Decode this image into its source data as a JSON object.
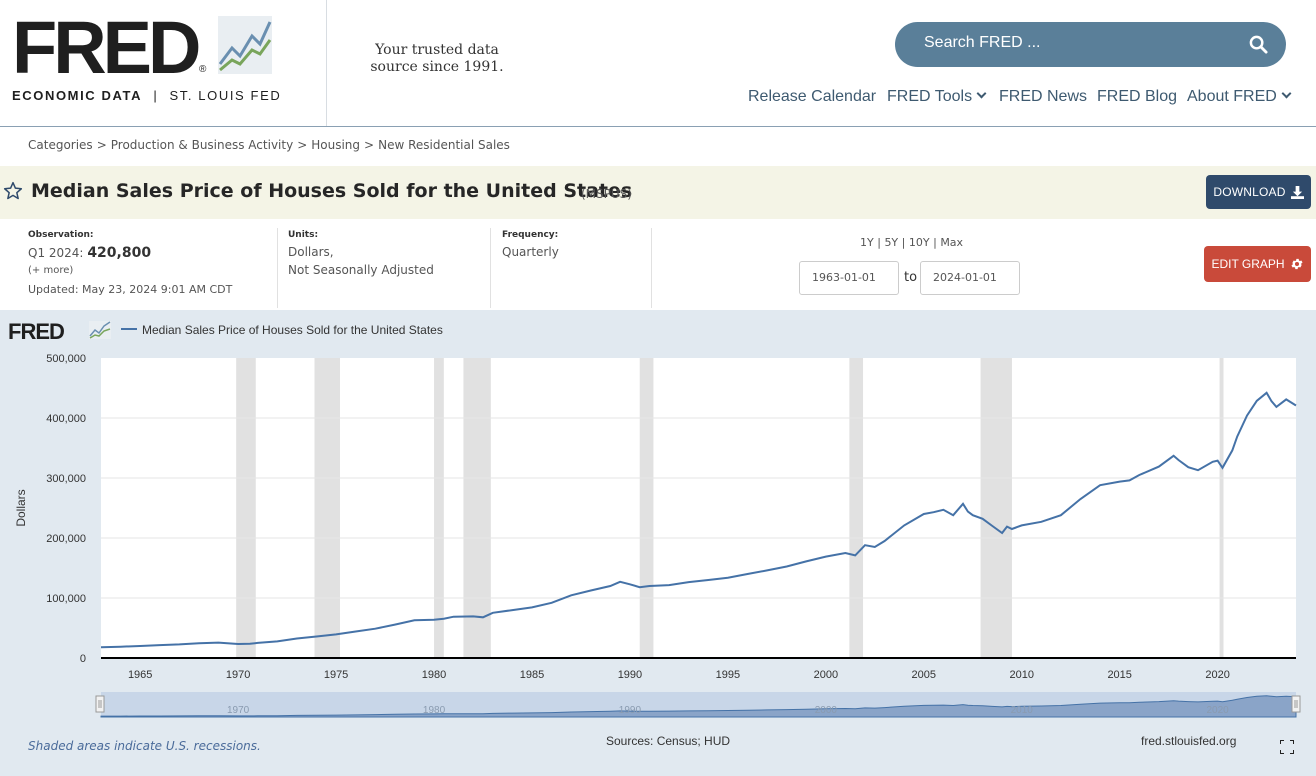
{
  "header": {
    "logo_text": "FRED",
    "logo_reg": "®",
    "logo_sub_left": "ECONOMIC DATA",
    "logo_sub_divider": "|",
    "logo_sub_right": "ST. LOUIS FED",
    "tagline": "Your trusted data source since 1991.",
    "search_placeholder": "Search FRED ...",
    "nav": [
      {
        "label": "Release Calendar",
        "dropdown": false
      },
      {
        "label": "FRED Tools",
        "dropdown": true
      },
      {
        "label": "FRED News",
        "dropdown": false
      },
      {
        "label": "FRED Blog",
        "dropdown": false
      },
      {
        "label": "About FRED",
        "dropdown": true
      }
    ]
  },
  "breadcrumb": [
    "Categories",
    "Production & Business Activity",
    "Housing",
    "New Residential Sales"
  ],
  "title": {
    "text": "Median Sales Price of Houses Sold for the United States",
    "series_id": "(MSPUS)",
    "download_label": "DOWNLOAD"
  },
  "meta": {
    "observation_label": "Observation:",
    "observation_period": "Q1 2024:",
    "observation_value": "420,800",
    "more": "(+ more)",
    "updated": "Updated: May 23, 2024 9:01 AM CDT",
    "units_label": "Units:",
    "units_line1": "Dollars,",
    "units_line2": "Not Seasonally Adjusted",
    "frequency_label": "Frequency:",
    "frequency_value": "Quarterly",
    "range_links": [
      "1Y",
      "5Y",
      "10Y",
      "Max"
    ],
    "range_sep": "|",
    "start_date": "1963-01-01",
    "to_label": "to",
    "end_date": "2024-01-01",
    "edit_label": "EDIT GRAPH"
  },
  "footer": {
    "recession_note": "Shaded areas indicate U.S. recessions.",
    "sources": "Sources: Census; HUD",
    "site": "fred.stlouisfed.org"
  },
  "colors": {
    "line": "#4572a7",
    "recession": "#e1e1e1",
    "search_bg": "#5a7f99",
    "download_bg": "#2f4a6b",
    "edit_bg": "#c94a3a",
    "title_bar_bg": "#f4f4e6",
    "graph_bg": "#e1e9f0",
    "nav_text": "#3e5a70"
  },
  "icons": [
    "search-icon",
    "star-icon",
    "download-icon",
    "gear-icon",
    "chevron-down-icon",
    "fullscreen-icon",
    "fred-chart-logo-icon"
  ],
  "chart_data": {
    "type": "line",
    "title": "",
    "legend_logo": "FRED",
    "legend": "Median Sales Price of Houses Sold for the United States",
    "ylabel": "Dollars",
    "xlabel": "",
    "xlim": [
      1963.0,
      2024.0
    ],
    "ylim": [
      0,
      500000
    ],
    "y_ticks": [
      0,
      100000,
      200000,
      300000,
      400000,
      500000
    ],
    "y_tick_labels": [
      "0",
      "100,000",
      "200,000",
      "300,000",
      "400,000",
      "500,000"
    ],
    "x_ticks": [
      1965,
      1970,
      1975,
      1980,
      1985,
      1990,
      1995,
      2000,
      2005,
      2010,
      2015,
      2020
    ],
    "navigator_ticks": [
      1970,
      1980,
      1990,
      2000,
      2010,
      2020
    ],
    "grid": true,
    "recessions": [
      [
        1969.9,
        1970.9
      ],
      [
        1973.9,
        1975.2
      ],
      [
        1980.0,
        1980.5
      ],
      [
        1981.5,
        1982.9
      ],
      [
        1990.5,
        1991.2
      ],
      [
        2001.2,
        2001.9
      ],
      [
        2007.9,
        2009.5
      ],
      [
        2020.1,
        2020.3
      ]
    ],
    "series": [
      {
        "name": "Median Sales Price of Houses Sold for the United States",
        "x": [
          1963.0,
          1964.0,
          1965.0,
          1966.0,
          1967.0,
          1968.0,
          1969.0,
          1970.0,
          1970.6,
          1971.0,
          1972.0,
          1973.0,
          1974.0,
          1975.0,
          1976.0,
          1977.0,
          1978.0,
          1979.0,
          1980.0,
          1980.5,
          1981.0,
          1982.0,
          1982.5,
          1983.0,
          1984.0,
          1985.0,
          1986.0,
          1987.0,
          1988.0,
          1989.0,
          1989.5,
          1990.0,
          1990.5,
          1991.0,
          1992.0,
          1993.0,
          1994.0,
          1995.0,
          1996.0,
          1997.0,
          1998.0,
          1999.0,
          2000.0,
          2001.0,
          2001.5,
          2002.0,
          2002.5,
          2003.0,
          2004.0,
          2005.0,
          2005.5,
          2006.0,
          2006.5,
          2007.0,
          2007.25,
          2007.5,
          2008.0,
          2008.5,
          2009.0,
          2009.25,
          2009.5,
          2010.0,
          2011.0,
          2012.0,
          2013.0,
          2014.0,
          2015.0,
          2015.5,
          2016.0,
          2017.0,
          2017.75,
          2018.0,
          2018.5,
          2019.0,
          2019.75,
          2020.0,
          2020.25,
          2020.75,
          2021.0,
          2021.5,
          2022.0,
          2022.5,
          2022.75,
          2023.0,
          2023.5,
          2024.0
        ],
        "values": [
          17800,
          18900,
          20000,
          21500,
          22700,
          24700,
          25600,
          23400,
          23600,
          25200,
          27600,
          32500,
          35900,
          39300,
          44200,
          48800,
          55700,
          62900,
          63700,
          65500,
          68900,
          69300,
          67800,
          75300,
          79900,
          84300,
          92000,
          104500,
          112500,
          120000,
          127000,
          122900,
          118000,
          120000,
          121500,
          126500,
          130000,
          133900,
          140000,
          146000,
          152500,
          161000,
          169000,
          175000,
          171000,
          188000,
          185000,
          195000,
          221000,
          240000,
          243000,
          247000,
          238000,
          257000,
          244000,
          238000,
          232000,
          220000,
          208400,
          219000,
          215000,
          221000,
          227000,
          238000,
          265000,
          288000,
          294000,
          296000,
          305000,
          319000,
          337000,
          330000,
          318000,
          313000,
          327000,
          329000,
          317000,
          346000,
          369000,
          404000,
          428700,
          442000,
          428000,
          418500,
          431000,
          420800
        ]
      }
    ]
  }
}
